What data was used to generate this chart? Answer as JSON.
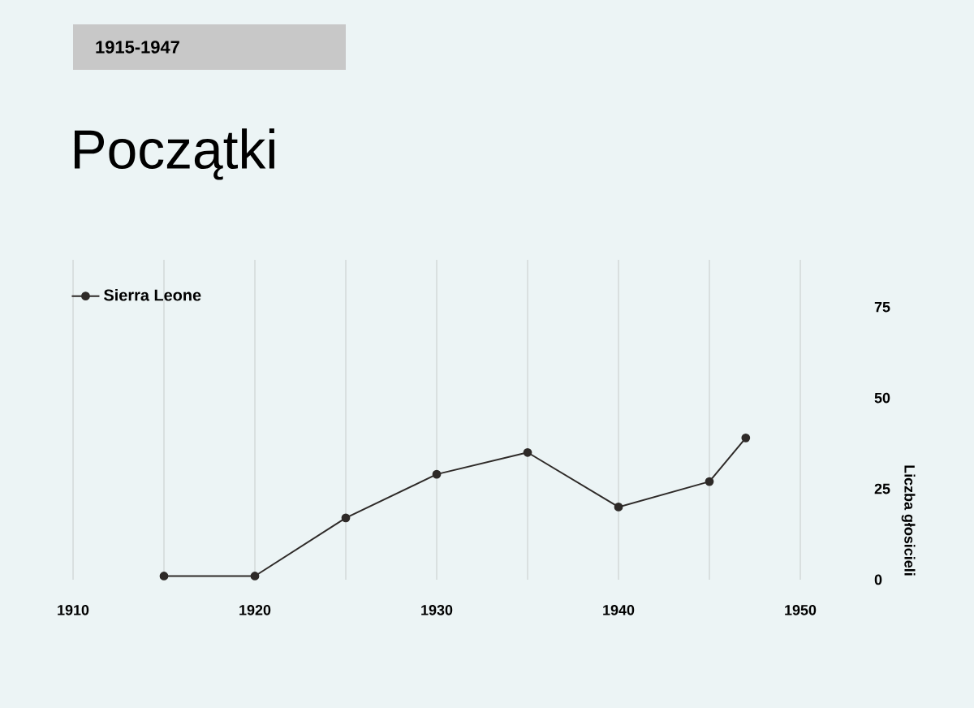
{
  "chart_data": {
    "type": "line",
    "title": "Początki",
    "subtitle": "1915-1947",
    "y2label": "Liczba głosicieli",
    "x": [
      1915,
      1920,
      1925,
      1930,
      1935,
      1940,
      1945,
      1947
    ],
    "series": [
      {
        "name": "Sierra Leone",
        "color": "#2e2a28",
        "values": [
          1,
          1,
          17,
          29,
          35,
          20,
          27,
          39
        ]
      }
    ],
    "xlim": [
      1910,
      1950
    ],
    "xticks": [
      1910,
      {
        "value": 1915,
        "label": null
      },
      1920,
      {
        "value": 1925,
        "label": null
      },
      1930,
      {
        "value": 1935,
        "label": null
      },
      1940,
      {
        "value": 1945,
        "label": null
      },
      1950
    ],
    "ylim": [
      0,
      88
    ],
    "yticks": [
      0,
      25,
      50,
      75
    ],
    "grid": "x",
    "legend": "top left",
    "marker": "circle",
    "line_style": "solid"
  }
}
